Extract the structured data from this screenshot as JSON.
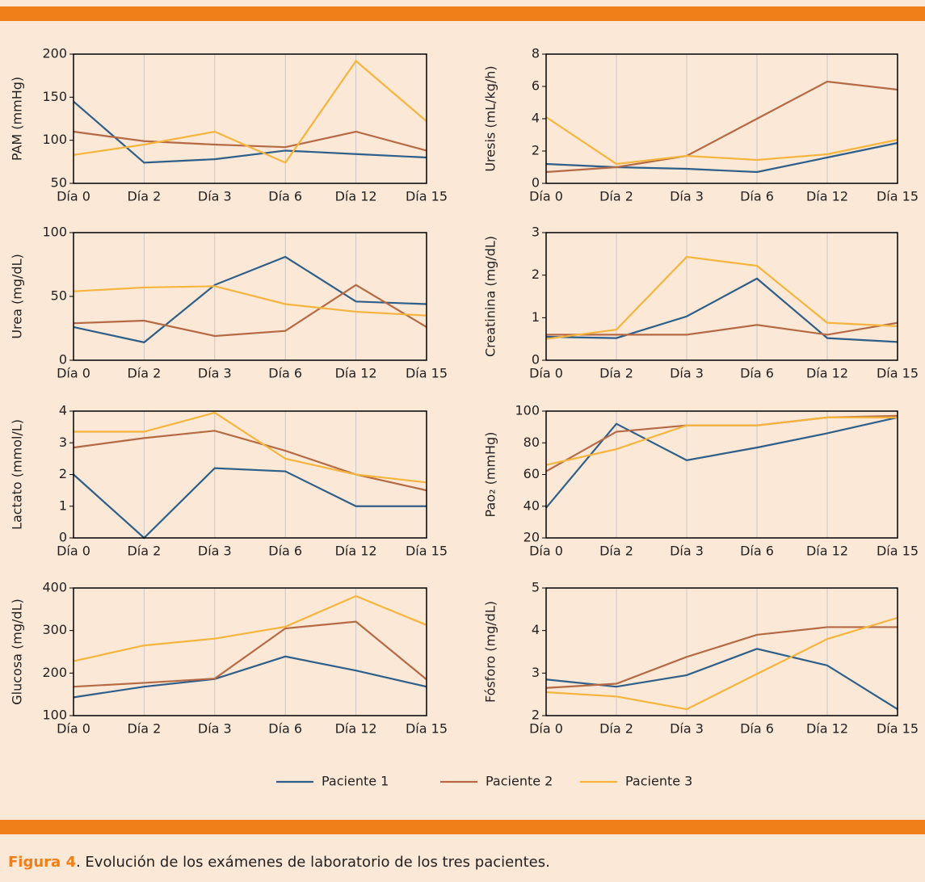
{
  "chart_data": [
    {
      "type": "line",
      "ylabel": "PAM (mmHg)",
      "categories": [
        "Día 0",
        "Día 2",
        "Día 3",
        "Día 6",
        "Día 12",
        "Día 15"
      ],
      "ylim": [
        50,
        200
      ],
      "yticks": [
        50,
        100,
        150,
        200
      ],
      "grid": true,
      "series": [
        {
          "name": "Paciente 1",
          "color": "#2e5f8a",
          "values": [
            145,
            74,
            78,
            88,
            84,
            80
          ]
        },
        {
          "name": "Paciente 2",
          "color": "#b56a45",
          "values": [
            110,
            99,
            95,
            92,
            110,
            88
          ]
        },
        {
          "name": "Paciente 3",
          "color": "#f5b53d",
          "values": [
            83,
            95,
            110,
            74,
            192,
            122
          ]
        }
      ]
    },
    {
      "type": "line",
      "ylabel": "Uresis (mL/kg/h)",
      "categories": [
        "Día 0",
        "Día 2",
        "Día 3",
        "Día 6",
        "Día 12",
        "Día 15"
      ],
      "ylim": [
        0,
        8
      ],
      "yticks": [
        0,
        2,
        4,
        6,
        8
      ],
      "grid": true,
      "series": [
        {
          "name": "Paciente 1",
          "color": "#2e5f8a",
          "values": [
            1.2,
            1.0,
            0.9,
            0.7,
            1.6,
            2.5
          ]
        },
        {
          "name": "Paciente 2",
          "color": "#b56a45",
          "values": [
            0.7,
            1.0,
            1.7,
            4.0,
            6.3,
            5.8
          ]
        },
        {
          "name": "Paciente 3",
          "color": "#f5b53d",
          "values": [
            4.1,
            1.2,
            1.7,
            1.45,
            1.8,
            2.7
          ]
        }
      ]
    },
    {
      "type": "line",
      "ylabel": "Urea (mg/dL)",
      "categories": [
        "Día 0",
        "Día 2",
        "Día 3",
        "Día 6",
        "Día 12",
        "Día 15"
      ],
      "ylim": [
        0,
        100
      ],
      "yticks": [
        0,
        50,
        100
      ],
      "grid": true,
      "series": [
        {
          "name": "Paciente 1",
          "color": "#2e5f8a",
          "values": [
            26,
            14,
            59,
            81,
            46,
            44
          ]
        },
        {
          "name": "Paciente 2",
          "color": "#b56a45",
          "values": [
            29,
            31,
            19,
            23,
            59,
            26
          ]
        },
        {
          "name": "Paciente 3",
          "color": "#f5b53d",
          "values": [
            54,
            57,
            58,
            44,
            38,
            35
          ]
        }
      ]
    },
    {
      "type": "line",
      "ylabel": "Creatinina (mg/dL)",
      "categories": [
        "Día 0",
        "Día 2",
        "Día 3",
        "Día 6",
        "Día 12",
        "Día 15"
      ],
      "ylim": [
        0,
        3
      ],
      "yticks": [
        0,
        1,
        2,
        3
      ],
      "grid": true,
      "series": [
        {
          "name": "Paciente 1",
          "color": "#2e5f8a",
          "values": [
            0.55,
            0.52,
            1.03,
            1.92,
            0.52,
            0.43
          ]
        },
        {
          "name": "Paciente 2",
          "color": "#b56a45",
          "values": [
            0.6,
            0.6,
            0.6,
            0.83,
            0.6,
            0.88
          ]
        },
        {
          "name": "Paciente 3",
          "color": "#f5b53d",
          "values": [
            0.5,
            0.72,
            2.43,
            2.22,
            0.88,
            0.8
          ]
        }
      ]
    },
    {
      "type": "line",
      "ylabel": "Lactato (mmol/L)",
      "categories": [
        "Día 0",
        "Día 2",
        "Día 3",
        "Día 6",
        "Día 12",
        "Día 15"
      ],
      "ylim": [
        0,
        4
      ],
      "yticks": [
        0,
        1,
        2,
        3,
        4
      ],
      "grid": true,
      "series": [
        {
          "name": "Paciente 1",
          "color": "#2e5f8a",
          "values": [
            2.0,
            0.0,
            2.2,
            2.1,
            1.0,
            1.0
          ]
        },
        {
          "name": "Paciente 2",
          "color": "#b56a45",
          "values": [
            2.85,
            3.15,
            3.38,
            2.75,
            2.0,
            1.5
          ]
        },
        {
          "name": "Paciente 3",
          "color": "#f5b53d",
          "values": [
            3.35,
            3.35,
            3.95,
            2.5,
            2.0,
            1.75
          ]
        }
      ]
    },
    {
      "type": "line",
      "ylabel": "Pao₂ (mmHg)",
      "categories": [
        "Día 0",
        "Día 2",
        "Día 3",
        "Día 6",
        "Día 12",
        "Día 15"
      ],
      "ylim": [
        20,
        100
      ],
      "yticks": [
        20,
        40,
        60,
        80,
        100
      ],
      "grid": true,
      "series": [
        {
          "name": "Paciente 1",
          "color": "#2e5f8a",
          "values": [
            39,
            92,
            69,
            77,
            86,
            96
          ]
        },
        {
          "name": "Paciente 2",
          "color": "#b56a45",
          "values": [
            62,
            87,
            91,
            91,
            96,
            97
          ]
        },
        {
          "name": "Paciente 3",
          "color": "#f5b53d",
          "values": [
            66,
            76,
            91,
            91,
            96,
            96
          ]
        }
      ]
    },
    {
      "type": "line",
      "ylabel": "Glucosa (mg/dL)",
      "categories": [
        "Día 0",
        "Día 2",
        "Día 3",
        "Día 6",
        "Día 12",
        "Día 15"
      ],
      "ylim": [
        100,
        400
      ],
      "yticks": [
        100,
        200,
        300,
        400
      ],
      "grid": true,
      "series": [
        {
          "name": "Paciente 1",
          "color": "#2e5f8a",
          "values": [
            143,
            168,
            186,
            239,
            206,
            168
          ]
        },
        {
          "name": "Paciente 2",
          "color": "#b56a45",
          "values": [
            168,
            177,
            187,
            305,
            321,
            185
          ]
        },
        {
          "name": "Paciente 3",
          "color": "#f5b53d",
          "values": [
            228,
            265,
            281,
            309,
            381,
            313
          ]
        }
      ]
    },
    {
      "type": "line",
      "ylabel": "Fósforo (mg/dL)",
      "categories": [
        "Día 0",
        "Día 2",
        "Día 3",
        "Día 6",
        "Día 12",
        "Día 15"
      ],
      "ylim": [
        2,
        5
      ],
      "yticks": [
        2,
        3,
        4,
        5
      ],
      "grid": true,
      "series": [
        {
          "name": "Paciente 1",
          "color": "#2e5f8a",
          "values": [
            2.85,
            2.68,
            2.95,
            3.57,
            3.18,
            2.15
          ]
        },
        {
          "name": "Paciente 2",
          "color": "#b56a45",
          "values": [
            2.65,
            2.75,
            3.38,
            3.9,
            4.08,
            4.08
          ]
        },
        {
          "name": "Paciente 3",
          "color": "#f5b53d",
          "values": [
            2.55,
            2.45,
            2.15,
            2.98,
            3.8,
            4.3
          ]
        }
      ]
    }
  ],
  "caption": {
    "label": "Figura 4",
    "text": ". Evolución de los exámenes de laboratorio de los tres pacientes."
  }
}
